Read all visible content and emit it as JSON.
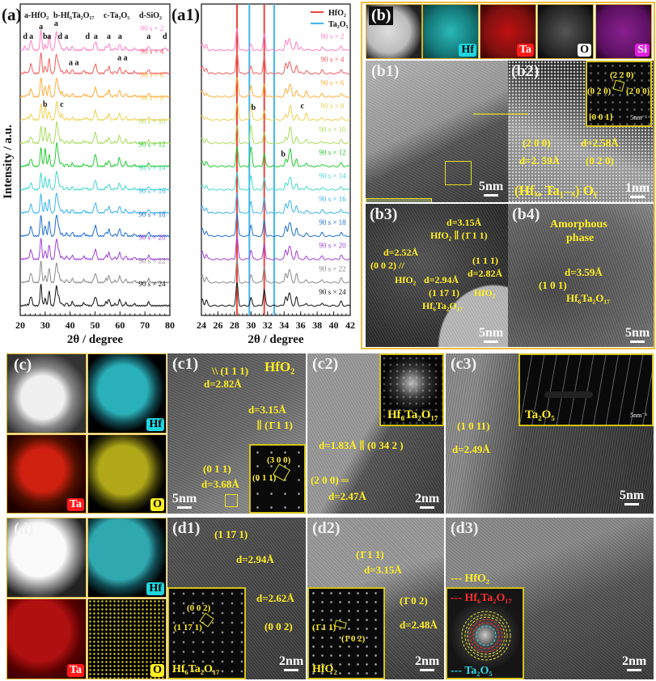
{
  "panels": {
    "a": "(a)",
    "a1": "(a1)",
    "b": "(b)",
    "b1": "(b1)",
    "b2": "(b2)",
    "b3": "(b3)",
    "b4": "(b4)",
    "c": "(c)",
    "c1": "(c1)",
    "c2": "(c2)",
    "c3": "(c3)",
    "d": "(d)",
    "d1": "(d1)",
    "d2": "(d2)",
    "d3": "(d3)"
  },
  "chart_data": [
    {
      "type": "line",
      "title": "",
      "xlabel": "2θ / degree",
      "ylabel": "Intensity / a.u.",
      "xlim": [
        20,
        80
      ],
      "xticks": [
        20,
        30,
        40,
        50,
        60,
        70,
        80
      ],
      "phase_legend": [
        "a-HfO₂",
        "b-Hf₆Ta₂O₁₇",
        "c-Ta₂O₅",
        "d-SiO₂"
      ],
      "annotations": [
        {
          "letter": "d",
          "x": 22.0
        },
        {
          "letter": "a",
          "x": 24.4
        },
        {
          "letter": "a",
          "x": 28.3
        },
        {
          "letter": "b",
          "x": 30.0
        },
        {
          "letter": "a",
          "x": 31.6
        },
        {
          "letter": "a",
          "x": 34.4
        },
        {
          "letter": "d",
          "x": 36.0
        },
        {
          "letter": "a",
          "x": 38.5
        },
        {
          "letter": "d",
          "x": 47.0
        },
        {
          "letter": "a",
          "x": 50.3
        },
        {
          "letter": "a",
          "x": 55.5
        },
        {
          "letter": "a",
          "x": 60.0
        },
        {
          "letter": "a",
          "x": 71.5
        },
        {
          "letter": "d",
          "x": 78.0
        }
      ]
    },
    {
      "type": "line",
      "xlabel": "2θ / degree",
      "xlim": [
        24,
        42
      ],
      "xticks": [
        24,
        26,
        28,
        30,
        32,
        34,
        36,
        38,
        40,
        42
      ],
      "legend": [
        {
          "name": "HfO₂",
          "color": "#e8463c",
          "positions": [
            28.3,
            31.6
          ]
        },
        {
          "name": "Ta₂O₅",
          "color": "#3fb6f0",
          "positions": [
            29.8,
            32.8
          ]
        }
      ],
      "legend_placement": "top-right"
    }
  ],
  "phases": {
    "HfO2": [
      [
        24.1,
        0.35
      ],
      [
        24.6,
        0.25
      ],
      [
        28.3,
        1.0
      ],
      [
        31.6,
        0.75
      ],
      [
        34.2,
        0.45
      ],
      [
        34.6,
        0.5
      ],
      [
        35.5,
        0.4
      ],
      [
        38.6,
        0.15
      ],
      [
        40.9,
        0.2
      ],
      [
        45.5,
        0.15
      ],
      [
        49.6,
        0.2
      ],
      [
        50.4,
        0.3
      ],
      [
        54.4,
        0.2
      ],
      [
        55.6,
        0.3
      ],
      [
        58.0,
        0.1
      ],
      [
        60.0,
        0.25
      ],
      [
        62.3,
        0.1
      ],
      [
        65.8,
        0.1
      ],
      [
        71.5,
        0.2
      ]
    ],
    "Hf6Ta2O17": [
      [
        30.0,
        0.9
      ],
      [
        34.8,
        0.7
      ],
      [
        50.1,
        0.4
      ],
      [
        59.6,
        0.3
      ],
      [
        62.3,
        0.15
      ]
    ],
    "Ta2O5": [
      [
        22.9,
        0.3
      ],
      [
        28.4,
        0.5
      ],
      [
        36.7,
        0.6
      ],
      [
        46.7,
        0.2
      ],
      [
        55.5,
        0.25
      ]
    ],
    "SiO2": [
      [
        21.8,
        0.3
      ],
      [
        36.0,
        0.2
      ],
      [
        78.0,
        0.2
      ]
    ]
  },
  "series": [
    {
      "name": "90 s × 2",
      "color": "#ff7fc6",
      "w": {
        "HfO2": 1.0,
        "Hf6Ta2O17": 0.3,
        "Ta2O5": 0.1,
        "SiO2": 0.6
      }
    },
    {
      "name": "90 s × 4",
      "color": "#f25c5c",
      "w": {
        "HfO2": 1.0,
        "Hf6Ta2O17": 0.4,
        "Ta2O5": 0.2,
        "SiO2": 0.2
      }
    },
    {
      "name": "90 s × 6",
      "color": "#ffad3a",
      "w": {
        "HfO2": 0.8,
        "Hf6Ta2O17": 0.6,
        "Ta2O5": 0.4,
        "SiO2": 0.1
      }
    },
    {
      "name": "90 s × 8",
      "color": "#f0d050",
      "w": {
        "HfO2": 0.6,
        "Hf6Ta2O17": 0.8,
        "Ta2O5": 0.5,
        "SiO2": 0.1
      }
    },
    {
      "name": "90 s × 10",
      "color": "#a8dc5a",
      "w": {
        "HfO2": 0.7,
        "Hf6Ta2O17": 0.9,
        "Ta2O5": 0.3,
        "SiO2": 0.1
      }
    },
    {
      "name": "90 s × 12",
      "color": "#22cc33",
      "w": {
        "HfO2": 0.8,
        "Hf6Ta2O17": 1.0,
        "Ta2O5": 0.3,
        "SiO2": 0.1
      }
    },
    {
      "name": "90 s × 14",
      "color": "#44d8d0",
      "w": {
        "HfO2": 0.7,
        "Hf6Ta2O17": 0.7,
        "Ta2O5": 0.3,
        "SiO2": 0.1
      }
    },
    {
      "name": "90 s × 16",
      "color": "#3ab4f0",
      "w": {
        "HfO2": 0.9,
        "Hf6Ta2O17": 0.6,
        "Ta2O5": 0.2,
        "SiO2": 0.1
      }
    },
    {
      "name": "90 s × 18",
      "color": "#1f6fd0",
      "w": {
        "HfO2": 1.0,
        "Hf6Ta2O17": 0.6,
        "Ta2O5": 0.2,
        "SiO2": 0.1
      }
    },
    {
      "name": "90 s × 20",
      "color": "#a040d8",
      "w": {
        "HfO2": 1.0,
        "Hf6Ta2O17": 0.5,
        "Ta2O5": 0.2,
        "SiO2": 0.1
      }
    },
    {
      "name": "90 s × 22",
      "color": "#8a8a8a",
      "w": {
        "HfO2": 1.0,
        "Hf6Ta2O17": 0.4,
        "Ta2O5": 0.2,
        "SiO2": 0.1
      }
    },
    {
      "name": "90 s × 24",
      "color": "#111111",
      "w": {
        "HfO2": 1.0,
        "Hf6Ta2O17": 0.4,
        "Ta2O5": 0.2,
        "SiO2": 0.1
      }
    }
  ],
  "a1_marks": {
    "b1": "b",
    "c1": "c",
    "b2": "b"
  },
  "a_marks": {
    "b": "b",
    "c": "c",
    "aa": "a a",
    "a_pair": "a  a"
  },
  "eds": {
    "hf": "Hf",
    "ta": "Ta",
    "o": "O",
    "si": "Si"
  },
  "b1": {
    "scale": "5nm",
    "eds_hf": "Hf",
    "eds_ta": "Ta",
    "eds_o": "O"
  },
  "b2": {
    "inset_220": "(2 2 0)",
    "inset_020": "(0 2 0)",
    "inset_200": "(2 0 0)",
    "zone": "[0 0 1]",
    "inset_scale": "5nm⁻¹",
    "plane1": "(2 0 0)",
    "d1": "d=2. 59Å",
    "d2": "d=2.58Å",
    "plane2": "(0 2 0)",
    "formula": "(Hfₓ, Ta₁₋ₓ) Oᵧ",
    "scale": "1nm"
  },
  "b3": {
    "d_315": "d=3.15Å",
    "hfo2_111bar": "HfO₂ ∥ (1̄ 1 1)",
    "d_252": "d=2.52Å",
    "p_002": "(0 0 2) //",
    "hfo2_a": "HfO₂",
    "d_294": "d=2.94Å",
    "p_1171": "(1 17 1)",
    "hf6": "Hf₆Ta₂O₁₇",
    "p_111": "(1 1 1)",
    "d_282": "d=2.82Å",
    "hfo2_b": "HfO₂",
    "scale": "5nm"
  },
  "b4": {
    "amorphous": "Amorphous",
    "phase": "phase",
    "d": "d=3.59Å",
    "plane": "(1 0 1)",
    "formula": "Hf₆Ta₂O₁₇",
    "scale": "5nm"
  },
  "c1": {
    "p111": "\\\\ (1 1 1)",
    "d282": "d=2.82Å",
    "title": "HfO₂",
    "d315": "d=3.15Å",
    "p111bar": "∥ (1̄ 1 1)",
    "inset300": "(3 0 0)",
    "inset011": "(0 1 1)",
    "p011": "(0 1 1)",
    "d368": "d=3.68Å",
    "scale": "5nm"
  },
  "c2": {
    "inset": "Hf₆Ta₂O₁₇",
    "d183": "d=1.83Å ∥ (0 34 2 )",
    "p200": "(2 0 0) ═",
    "d247": "d=2.47Å",
    "scale": "2nm"
  },
  "c3": {
    "inset": "Ta₂O₅",
    "inset_scale": "5nm⁻¹",
    "p1011": "(1 0 11)",
    "d249": "d=2.49Å",
    "scale": "5nm"
  },
  "d1": {
    "p1171": "(1 17 1)",
    "d294": "d=2.94Å",
    "d262": "d=2.62Å",
    "p002": "(0 0 2)",
    "inset002": "(0 0 2)",
    "inset1171": "(1 17 1)",
    "inset": "Hf₆Ta₂O₁₇",
    "scale": "2nm"
  },
  "d2": {
    "p111": "(1̄ 1 1)",
    "d315": "d=3.15Å",
    "p102": "(1̄ 0 2)",
    "d248": "d=2.48Å",
    "inset111": "(1̄ 1 1)",
    "inset102": "(1̄ 0 2)",
    "inset": "HfO₂",
    "scale": "2nm"
  },
  "d3": {
    "hfo2": "--- HfO₂",
    "hf6": "--- Hf₆Ta₂O₁₇",
    "ta2o5": "--- Ta₂O₅",
    "scale": "2nm"
  }
}
